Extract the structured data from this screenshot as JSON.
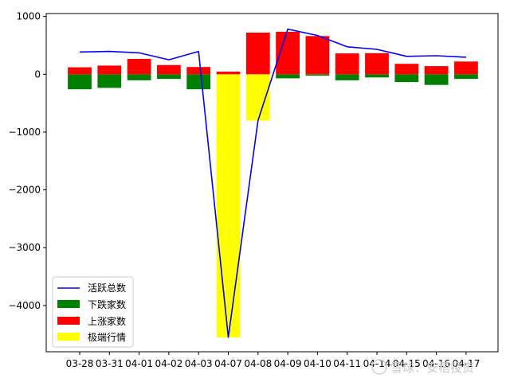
{
  "chart_data": {
    "type": "bar",
    "categories": [
      "03-28",
      "03-31",
      "04-01",
      "04-02",
      "04-03",
      "04-07",
      "04-08",
      "04-09",
      "04-10",
      "04-11",
      "04-14",
      "04-15",
      "04-16",
      "04-17"
    ],
    "ylim": [
      -4800,
      1050
    ],
    "yticks": [
      1000,
      0,
      -1000,
      -2000,
      -3000,
      -4000
    ],
    "ytick_labels": [
      "1000",
      "0",
      "−1000",
      "−2000",
      "−3000",
      "−4000"
    ],
    "series": [
      {
        "name": "活跃总数",
        "kind": "line",
        "color": "#0000ff",
        "values": [
          385,
          395,
          370,
          250,
          395,
          -4550,
          -800,
          780,
          670,
          475,
          430,
          310,
          320,
          295
        ]
      },
      {
        "name": "下跌家数",
        "kind": "bar",
        "color": "#008000",
        "values": [
          -260,
          -235,
          -105,
          -80,
          -260,
          0,
          0,
          -70,
          -25,
          -105,
          -55,
          -135,
          -185,
          -80
        ]
      },
      {
        "name": "上涨家数",
        "kind": "bar",
        "color": "#ff0000",
        "values": [
          120,
          150,
          265,
          160,
          125,
          45,
          720,
          735,
          660,
          360,
          365,
          180,
          140,
          220
        ]
      },
      {
        "name": "极端行情",
        "kind": "bar",
        "color": "#ffff00",
        "values": [
          0,
          0,
          0,
          0,
          0,
          -4550,
          -800,
          0,
          0,
          0,
          0,
          0,
          0,
          0
        ]
      }
    ],
    "legend_position": "lower-left",
    "grid": false
  },
  "watermark": {
    "text": "雪球：安梧投资"
  }
}
